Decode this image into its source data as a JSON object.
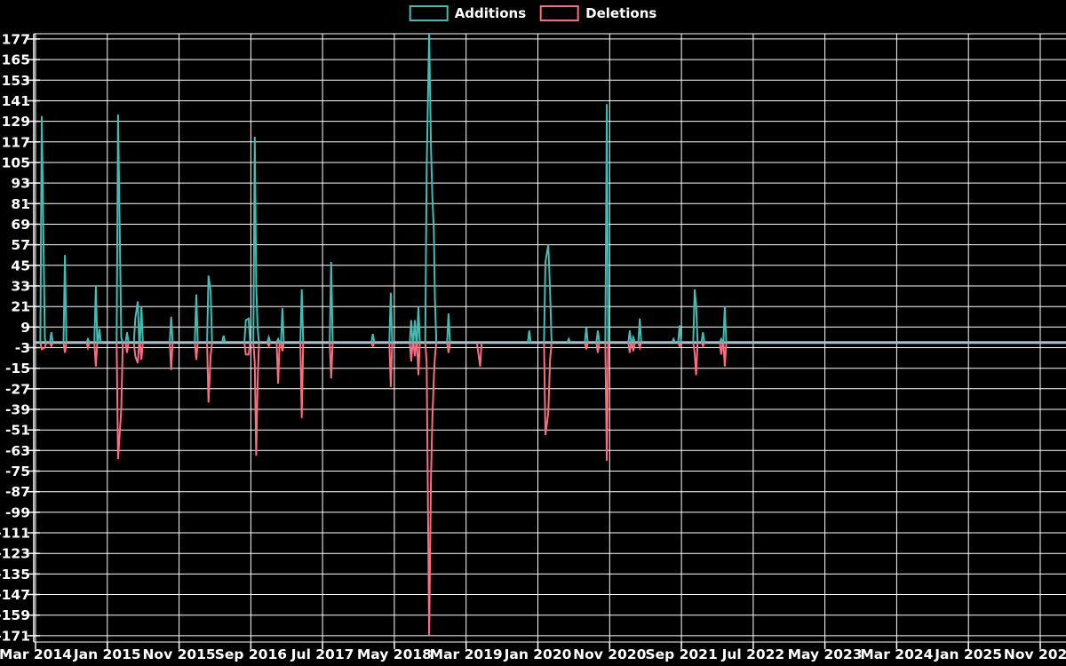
{
  "legend": {
    "items": [
      {
        "label": "Additions",
        "color": "#41bdb3"
      },
      {
        "label": "Deletions",
        "color": "#fa6e82"
      }
    ]
  },
  "colors": {
    "background": "#000000",
    "grid": "#ffffff",
    "zero_line": "#a8bfc9",
    "text": "#ffffff",
    "additions": "#41bdb3",
    "deletions": "#fa6e82"
  },
  "chart_data": {
    "type": "line",
    "title": "",
    "xlabel": "",
    "ylabel": "",
    "legend_position": "top-center",
    "grid": true,
    "y_ticks": [
      177,
      165,
      153,
      141,
      129,
      117,
      105,
      93,
      81,
      69,
      57,
      45,
      33,
      21,
      9,
      -3,
      -15,
      -27,
      -39,
      -51,
      -63,
      -75,
      -87,
      -99,
      -111,
      -123,
      -135,
      -147,
      -159,
      -171
    ],
    "y_range": [
      -174,
      180
    ],
    "x_tick_labels": [
      "Mar 2014",
      "Jan 2015",
      "Nov 2015",
      "Sep 2016",
      "Jul 2017",
      "May 2018",
      "Mar 2019",
      "Jan 2020",
      "Nov 2020",
      "Sep 2021",
      "Jul 2022",
      "May 2023",
      "Mar 2024",
      "Jan 2025",
      "Nov 2025"
    ],
    "x_months_per_tick": 10,
    "x_start_label": "Mar 2014",
    "series_names": [
      "Additions",
      "Deletions"
    ],
    "events_note": "t = months after Mar 2014; additions positive, deletions negative; line is flat at 0 elsewhere through Nov 2025",
    "events": [
      {
        "t": 0.87,
        "date": "2014-03",
        "additions": 132,
        "deletions": -4
      },
      {
        "t": 1.3,
        "date": "2014-04",
        "additions": 2,
        "deletions": -3
      },
      {
        "t": 2.2,
        "date": "2014-05",
        "additions": 6,
        "deletions": -2
      },
      {
        "t": 4.1,
        "date": "2014-07",
        "additions": 51,
        "deletions": -6
      },
      {
        "t": 7.3,
        "date": "2014-10",
        "additions": 2,
        "deletions": -3
      },
      {
        "t": 8.4,
        "date": "2014-11",
        "additions": 33,
        "deletions": -14
      },
      {
        "t": 8.9,
        "date": "2014-12",
        "additions": 8,
        "deletions": 0
      },
      {
        "t": 11.5,
        "date": "2015-02",
        "additions": 133,
        "deletions": -68
      },
      {
        "t": 11.95,
        "date": "2015-03",
        "additions": 3,
        "deletions": -39
      },
      {
        "t": 12.75,
        "date": "2015-03",
        "additions": 6,
        "deletions": -6
      },
      {
        "t": 13.9,
        "date": "2015-05",
        "additions": 14,
        "deletions": -8
      },
      {
        "t": 14.25,
        "date": "2015-05",
        "additions": 24,
        "deletions": -12
      },
      {
        "t": 14.75,
        "date": "2015-06",
        "additions": 21,
        "deletions": -10
      },
      {
        "t": 18.9,
        "date": "2015-10",
        "additions": 15,
        "deletions": -16
      },
      {
        "t": 22.4,
        "date": "2016-01",
        "additions": 28,
        "deletions": -10
      },
      {
        "t": 24.1,
        "date": "2016-03",
        "additions": 39,
        "deletions": -35
      },
      {
        "t": 24.4,
        "date": "2016-03",
        "additions": 30,
        "deletions": -8
      },
      {
        "t": 26.2,
        "date": "2016-05",
        "additions": 4,
        "deletions": 0
      },
      {
        "t": 29.3,
        "date": "2016-08",
        "additions": 13,
        "deletions": -7
      },
      {
        "t": 29.7,
        "date": "2016-08",
        "additions": 14,
        "deletions": -7
      },
      {
        "t": 30.55,
        "date": "2016-09",
        "additions": 120,
        "deletions": -12
      },
      {
        "t": 30.75,
        "date": "2016-09",
        "additions": 34,
        "deletions": -66
      },
      {
        "t": 30.95,
        "date": "2016-10",
        "additions": 8,
        "deletions": -23
      },
      {
        "t": 32.5,
        "date": "2016-11",
        "additions": 3,
        "deletions": -2
      },
      {
        "t": 33.8,
        "date": "2016-12",
        "additions": 2,
        "deletions": -24
      },
      {
        "t": 34.4,
        "date": "2017-01",
        "additions": 20,
        "deletions": -5
      },
      {
        "t": 37.1,
        "date": "2017-04",
        "additions": 31,
        "deletions": -44
      },
      {
        "t": 41.2,
        "date": "2017-08",
        "additions": 47,
        "deletions": -21
      },
      {
        "t": 47.0,
        "date": "2018-02",
        "additions": 5,
        "deletions": -2
      },
      {
        "t": 49.5,
        "date": "2018-04",
        "additions": 29,
        "deletions": -26
      },
      {
        "t": 52.35,
        "date": "2018-07",
        "additions": 13,
        "deletions": -11
      },
      {
        "t": 52.85,
        "date": "2018-07",
        "additions": 13,
        "deletions": -8
      },
      {
        "t": 53.35,
        "date": "2018-08",
        "additions": 21,
        "deletions": -19
      },
      {
        "t": 54.5,
        "date": "2018-09",
        "additions": 101,
        "deletions": -12
      },
      {
        "t": 54.85,
        "date": "2018-09",
        "additions": 180,
        "deletions": -171
      },
      {
        "t": 55.1,
        "date": "2018-10",
        "additions": 115,
        "deletions": -80
      },
      {
        "t": 55.3,
        "date": "2018-10",
        "additions": 85,
        "deletions": -45
      },
      {
        "t": 55.5,
        "date": "2018-10",
        "additions": 65,
        "deletions": -20
      },
      {
        "t": 55.65,
        "date": "2018-10",
        "additions": 25,
        "deletions": -8
      },
      {
        "t": 57.55,
        "date": "2018-12",
        "additions": 17,
        "deletions": -6
      },
      {
        "t": 61.7,
        "date": "2019-04",
        "additions": 0,
        "deletions": -6
      },
      {
        "t": 61.95,
        "date": "2019-05",
        "additions": 0,
        "deletions": -14
      },
      {
        "t": 68.8,
        "date": "2019-11",
        "additions": 7,
        "deletions": 0
      },
      {
        "t": 71.05,
        "date": "2020-02",
        "additions": 47,
        "deletions": -54
      },
      {
        "t": 71.45,
        "date": "2020-02",
        "additions": 57,
        "deletions": -41
      },
      {
        "t": 71.7,
        "date": "2020-02",
        "additions": 30,
        "deletions": -10
      },
      {
        "t": 74.3,
        "date": "2020-05",
        "additions": 2,
        "deletions": 0
      },
      {
        "t": 76.75,
        "date": "2020-07",
        "additions": 9,
        "deletions": -4
      },
      {
        "t": 78.35,
        "date": "2020-09",
        "additions": 7,
        "deletions": -6
      },
      {
        "t": 79.6,
        "date": "2020-10",
        "additions": 139,
        "deletions": -69
      },
      {
        "t": 82.8,
        "date": "2021-01",
        "additions": 7,
        "deletions": -6
      },
      {
        "t": 83.3,
        "date": "2021-02",
        "additions": 3,
        "deletions": -5
      },
      {
        "t": 84.2,
        "date": "2021-03",
        "additions": 14,
        "deletions": -3
      },
      {
        "t": 88.9,
        "date": "2021-07",
        "additions": 2,
        "deletions": 0
      },
      {
        "t": 89.75,
        "date": "2021-08",
        "additions": 10,
        "deletions": -2
      },
      {
        "t": 91.85,
        "date": "2021-10",
        "additions": 31,
        "deletions": -6
      },
      {
        "t": 92.05,
        "date": "2021-11",
        "additions": 22,
        "deletions": -19
      },
      {
        "t": 93.0,
        "date": "2021-12",
        "additions": 6,
        "deletions": -2
      },
      {
        "t": 95.55,
        "date": "2022-02",
        "additions": 2,
        "deletions": -7
      },
      {
        "t": 96.05,
        "date": "2022-03",
        "additions": 21,
        "deletions": -14
      }
    ]
  }
}
